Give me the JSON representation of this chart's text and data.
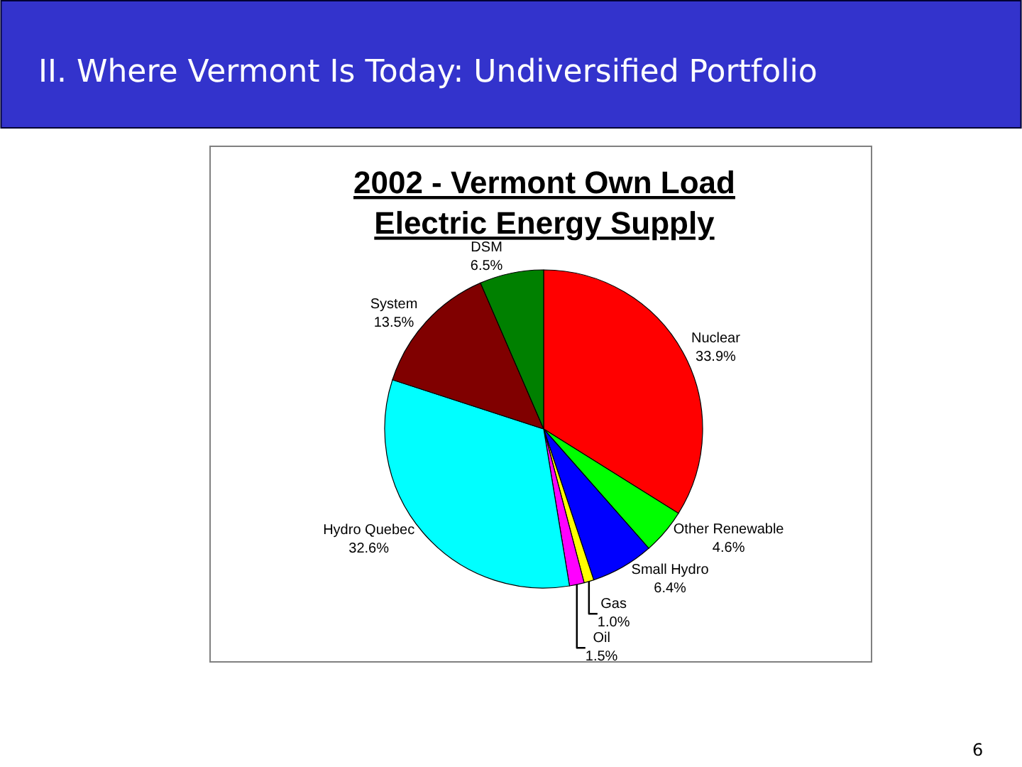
{
  "chart_data": {
    "type": "pie",
    "title": "II. Where Vermont Is Today: Undiversified Portfolio",
    "subtitle": "2002 - Vermont Own Load\nElectric Energy Supply",
    "annotations": [
      "6"
    ],
    "categories": [
      "Nuclear",
      "Other Renewable",
      "Small Hydro",
      "Gas",
      "Oil",
      "Hydro Quebec",
      "System",
      "DSM"
    ],
    "values": [
      33.9,
      4.6,
      6.4,
      1.0,
      1.5,
      32.6,
      13.5,
      6.5
    ],
    "value_labels": [
      "33.9%",
      "4.6%",
      "6.4%",
      "1.0%",
      "1.5%",
      "32.6%",
      "13.5%",
      "6.5%"
    ],
    "colors": [
      "#ff0000",
      "#00ff00",
      "#0000ff",
      "#ffff00",
      "#ff00ff",
      "#00ffff",
      "#800000",
      "#008000"
    ]
  }
}
